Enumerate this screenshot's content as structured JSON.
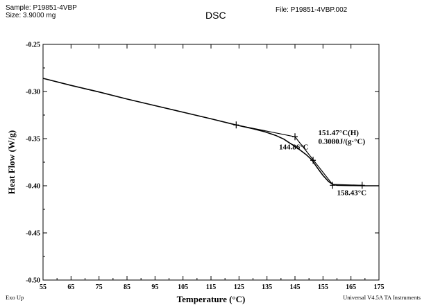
{
  "header": {
    "sample": "Sample: P19851-4VBP",
    "size": "Size:  3.9000 mg",
    "title": "DSC",
    "file": "File: P19851-4VBP.002"
  },
  "footer": {
    "exo_up": "Exo Up",
    "instrument": "Universal V4.5A TA Instruments"
  },
  "chart_data": {
    "type": "line",
    "title": "DSC",
    "xlabel": "Temperature (°C)",
    "ylabel": "Heat Flow (W/g)",
    "xlim": [
      55,
      175
    ],
    "ylim": [
      -0.5,
      -0.25
    ],
    "xticks": [
      55,
      65,
      75,
      85,
      95,
      105,
      115,
      125,
      135,
      145,
      155,
      165,
      175
    ],
    "yticks": [
      -0.25,
      -0.3,
      -0.35,
      -0.4,
      -0.45,
      -0.5
    ],
    "ytick_labels": [
      "-0.25",
      "-0.30",
      "-0.35",
      "-0.40",
      "-0.45",
      "-0.50"
    ],
    "grid": false,
    "series": [
      {
        "values": [
          [
            55,
            -0.286
          ],
          [
            65,
            -0.2935
          ],
          [
            75,
            -0.3005
          ],
          [
            85,
            -0.308
          ],
          [
            95,
            -0.315
          ],
          [
            105,
            -0.322
          ],
          [
            115,
            -0.329
          ],
          [
            124,
            -0.3355
          ],
          [
            130,
            -0.3395
          ],
          [
            134,
            -0.3425
          ],
          [
            138,
            -0.3465
          ],
          [
            141,
            -0.3505
          ],
          [
            143,
            -0.3545
          ],
          [
            145,
            -0.358
          ],
          [
            147,
            -0.3625
          ],
          [
            149,
            -0.367
          ],
          [
            151,
            -0.3725
          ],
          [
            153,
            -0.381
          ],
          [
            155,
            -0.389
          ],
          [
            157,
            -0.3955
          ],
          [
            158.5,
            -0.3985
          ],
          [
            160,
            -0.3995
          ],
          [
            165,
            -0.3998
          ],
          [
            170,
            -0.4
          ],
          [
            175,
            -0.4
          ]
        ]
      }
    ],
    "tangents": [
      [
        [
          124,
          -0.3355
        ],
        [
          145,
          -0.348
        ]
      ],
      [
        [
          145,
          -0.348
        ],
        [
          158.4,
          -0.3985
        ]
      ],
      [
        [
          158.4,
          -0.3985
        ],
        [
          169,
          -0.3995
        ]
      ]
    ],
    "markers": [
      [
        124,
        -0.3355
      ],
      [
        145,
        -0.348
      ],
      [
        151.47,
        -0.373
      ],
      [
        158.43,
        -0.3995
      ],
      [
        169,
        -0.3995
      ]
    ],
    "annotations": [
      {
        "text": "144.86°C",
        "x": 139.3,
        "y": -0.3615
      },
      {
        "text": "151.47°C(H)",
        "x": 153.3,
        "y": -0.3465
      },
      {
        "text": "0.3080J/(g·°C)",
        "x": 153.3,
        "y": -0.3555
      },
      {
        "text": "158.43°C",
        "x": 160,
        "y": -0.4098
      }
    ]
  }
}
